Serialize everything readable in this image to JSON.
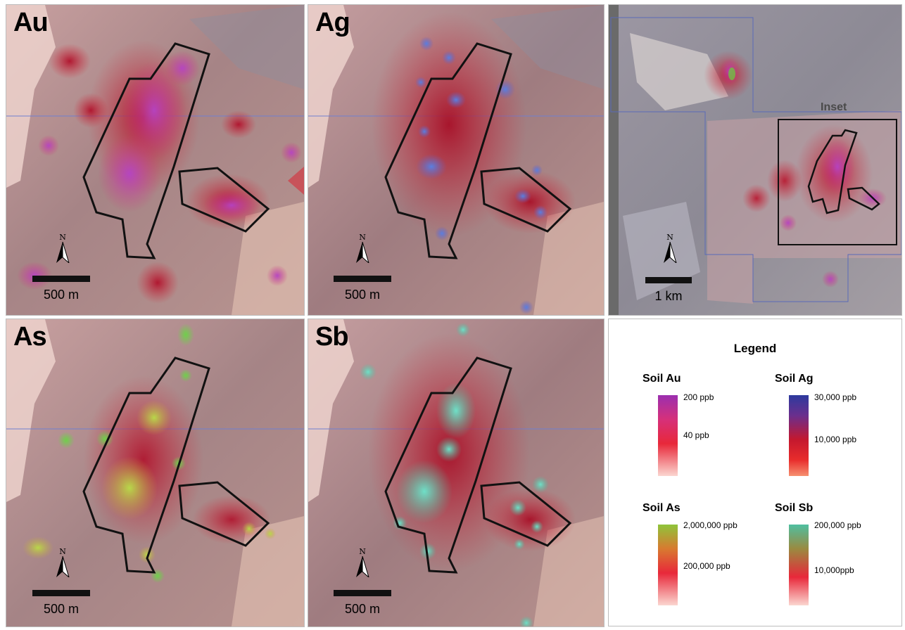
{
  "panels": {
    "au": {
      "title": "Au",
      "north": "N",
      "scale_label": "500 m"
    },
    "ag": {
      "title": "Ag",
      "north": "N",
      "scale_label": "500 m"
    },
    "as": {
      "title": "As",
      "north": "N",
      "scale_label": "500 m"
    },
    "sb": {
      "title": "Sb",
      "north": "N",
      "scale_label": "500 m"
    },
    "overview": {
      "north": "N",
      "scale_label": "1 km",
      "inset_label": "Inset"
    }
  },
  "legend": {
    "title": "Legend",
    "items": [
      {
        "label": "Soil Au",
        "max": "200 ppb",
        "mid": "40 ppb",
        "color": "#9b2fb0"
      },
      {
        "label": "Soil Ag",
        "max": "30,000 ppb",
        "mid": "10,000 ppb",
        "color": "#2d3a9e"
      },
      {
        "label": "Soil As",
        "max": "2,000,000 ppb",
        "mid": "200,000 ppb",
        "color": "#8fc43a"
      },
      {
        "label": "Soil Sb",
        "max": "200,000 ppb",
        "mid": "10,000ppb",
        "color": "#4fbfa0"
      }
    ]
  },
  "colors": {
    "au_high": "#c040c0",
    "ag_high": "#5a7fe0",
    "as_high": "#b8d84a",
    "sb_high": "#6fe0c8",
    "anomaly_red": "#d42a3a"
  }
}
